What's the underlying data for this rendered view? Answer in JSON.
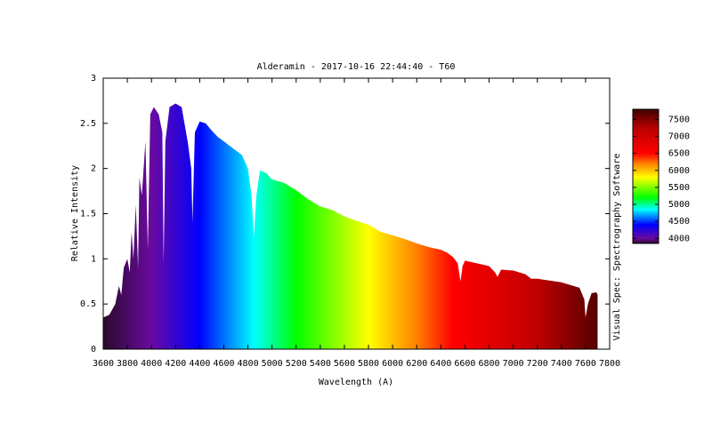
{
  "chart_data": {
    "type": "area",
    "title": "Alderamin - 2017-10-16 22:44:40 - T60",
    "x_label": "Wavelength (A)",
    "y_label": "Relative Intensity",
    "side_label": "Visual Spec: Spectrography Software",
    "x": [
      3600,
      3650,
      3700,
      3730,
      3750,
      3770,
      3800,
      3820,
      3835,
      3850,
      3870,
      3889,
      3900,
      3920,
      3950,
      3970,
      3990,
      4020,
      4060,
      4090,
      4101,
      4115,
      4150,
      4200,
      4250,
      4300,
      4330,
      4340,
      4360,
      4400,
      4450,
      4500,
      4550,
      4600,
      4650,
      4700,
      4750,
      4800,
      4830,
      4850,
      4870,
      4900,
      4950,
      5000,
      5100,
      5200,
      5300,
      5400,
      5500,
      5600,
      5700,
      5800,
      5900,
      6000,
      6100,
      6200,
      6300,
      6400,
      6450,
      6500,
      6540,
      6563,
      6580,
      6600,
      6700,
      6800,
      6850,
      6870,
      6900,
      7000,
      7100,
      7150,
      7200,
      7300,
      7400,
      7500,
      7550,
      7590,
      7600,
      7620,
      7650,
      7690,
      7700
    ],
    "values": [
      0.35,
      0.38,
      0.5,
      0.7,
      0.6,
      0.9,
      1.0,
      0.85,
      1.3,
      1.0,
      1.6,
      0.9,
      1.9,
      1.7,
      2.3,
      1.1,
      2.6,
      2.68,
      2.6,
      2.4,
      0.95,
      2.3,
      2.68,
      2.72,
      2.68,
      2.3,
      2.0,
      1.4,
      2.4,
      2.52,
      2.5,
      2.42,
      2.35,
      2.3,
      2.25,
      2.2,
      2.15,
      2.0,
      1.7,
      1.25,
      1.7,
      1.98,
      1.95,
      1.88,
      1.84,
      1.76,
      1.66,
      1.58,
      1.54,
      1.47,
      1.42,
      1.38,
      1.3,
      1.26,
      1.22,
      1.17,
      1.13,
      1.1,
      1.07,
      1.02,
      0.95,
      0.75,
      0.92,
      0.98,
      0.95,
      0.92,
      0.85,
      0.8,
      0.88,
      0.87,
      0.83,
      0.78,
      0.78,
      0.76,
      0.74,
      0.7,
      0.68,
      0.55,
      0.35,
      0.5,
      0.62,
      0.63,
      0.6
    ],
    "xlim": [
      3600,
      7800
    ],
    "xticks": [
      3600,
      3800,
      4000,
      4200,
      4400,
      4600,
      4800,
      5000,
      5200,
      5400,
      5600,
      5800,
      6000,
      6200,
      6400,
      6600,
      6800,
      7000,
      7200,
      7400,
      7600,
      7800
    ],
    "ylim": [
      0,
      3
    ],
    "yticks": [
      0,
      0.5,
      1,
      1.5,
      2,
      2.5,
      3
    ],
    "colormap": [
      {
        "value": 3600,
        "color": "#2a0a2a"
      },
      {
        "value": 4000,
        "color": "#6a0aa0"
      },
      {
        "value": 4400,
        "color": "#0000ff"
      },
      {
        "value": 4850,
        "color": "#00ffff"
      },
      {
        "value": 5200,
        "color": "#00ff00"
      },
      {
        "value": 5800,
        "color": "#ffff00"
      },
      {
        "value": 6200,
        "color": "#ff8000"
      },
      {
        "value": 6500,
        "color": "#ff0000"
      },
      {
        "value": 7200,
        "color": "#c00000"
      },
      {
        "value": 7800,
        "color": "#400000"
      }
    ],
    "clim": [
      3850,
      7800
    ],
    "cticks": [
      4000,
      4500,
      5000,
      5500,
      6000,
      6500,
      7000,
      7500
    ]
  }
}
